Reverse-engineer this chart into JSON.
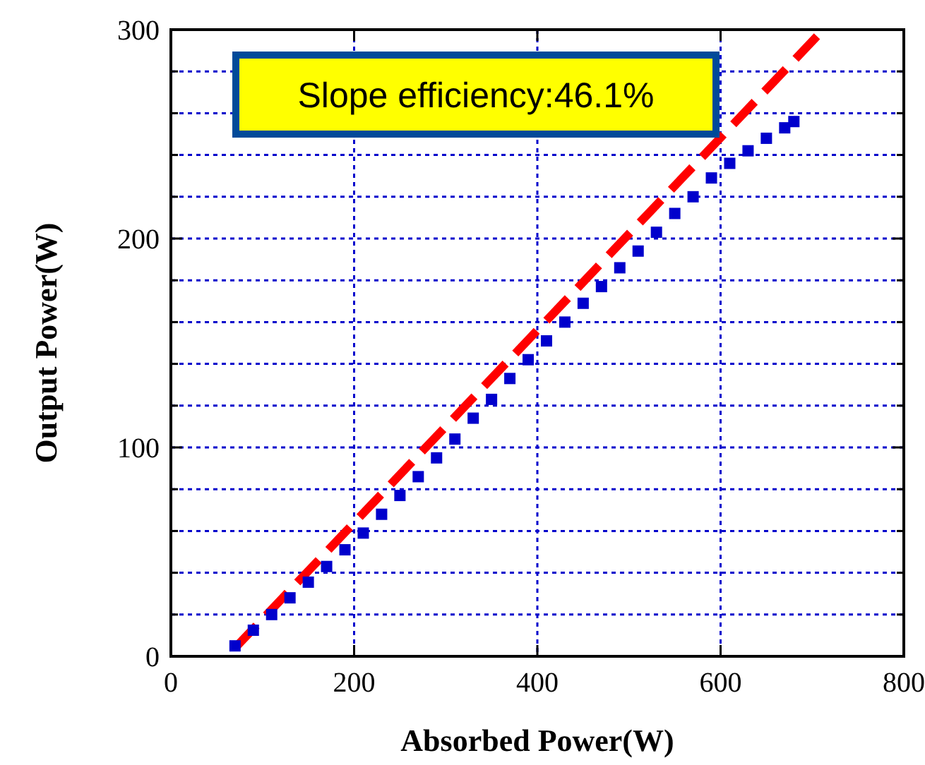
{
  "chart_data": {
    "type": "scatter",
    "xlabel": "Absorbed Power(W)",
    "ylabel": "Output Power(W)",
    "annotations": [
      "Slope efficiency:46.1%"
    ],
    "xlim": [
      0,
      800
    ],
    "xticks": [
      0,
      200,
      400,
      600,
      800
    ],
    "ylim": [
      0,
      300
    ],
    "yticks": [
      0,
      {
        "value": 20,
        "label": null
      },
      {
        "value": 40,
        "label": null
      },
      {
        "value": 60,
        "label": null
      },
      {
        "value": 80,
        "label": null
      },
      100,
      {
        "value": 120,
        "label": null
      },
      {
        "value": 140,
        "label": null
      },
      {
        "value": 160,
        "label": null
      },
      {
        "value": 180,
        "label": null
      },
      200,
      {
        "value": 220,
        "label": null
      },
      {
        "value": 240,
        "label": null
      },
      {
        "value": 260,
        "label": null
      },
      {
        "value": 280,
        "label": null
      },
      300
    ],
    "grid": true,
    "marker": "square",
    "series": [
      {
        "color": "#0000cc",
        "x": [
          70,
          90,
          110,
          130,
          150,
          170,
          190,
          210,
          230,
          250,
          270,
          290,
          310,
          330,
          350,
          370,
          390,
          410,
          430,
          450,
          470,
          490,
          510,
          530,
          550,
          570,
          590,
          610,
          630,
          650,
          670,
          680
        ],
        "values": [
          5,
          12.5,
          20,
          28,
          35.5,
          43,
          51,
          59,
          68,
          77,
          86,
          95,
          104,
          114,
          123,
          133,
          142,
          151,
          160,
          169,
          177,
          186,
          194,
          203,
          212,
          220,
          229,
          236,
          242,
          248,
          253,
          256
        ]
      },
      {
        "type": "line",
        "color": "#ff0000",
        "line_style": "dashed",
        "marker": "none",
        "x": [
          70,
          710
        ],
        "values": [
          4,
          299
        ]
      }
    ]
  }
}
